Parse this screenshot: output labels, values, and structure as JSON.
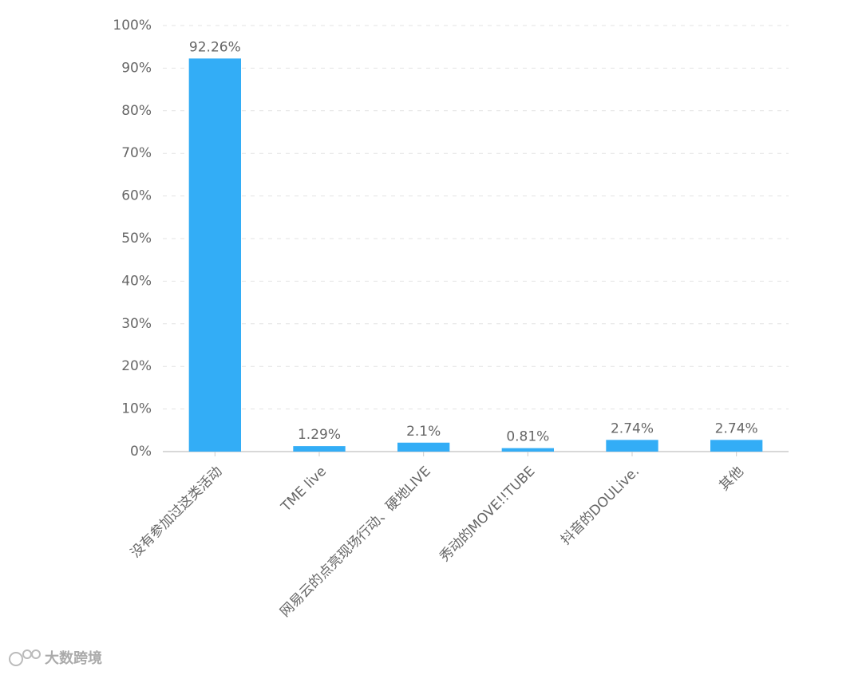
{
  "chart_data": {
    "type": "bar",
    "categories": [
      "没有参加过这类活动",
      "TME live",
      "网易云的点亮现场行动、硬地LIVE",
      "秀动的MOVE!!TUBE",
      "抖音的DOULive.",
      "其他"
    ],
    "values": [
      92.26,
      1.29,
      2.1,
      0.81,
      2.74,
      2.74
    ],
    "value_labels": [
      "92.26%",
      "1.29%",
      "2.1%",
      "0.81%",
      "2.74%",
      "2.74%"
    ],
    "color": "#33adf6",
    "ylim": [
      0,
      100
    ],
    "yticks": [
      {
        "value": 0,
        "label": "0%"
      },
      {
        "value": 10,
        "label": "10%"
      },
      {
        "value": 20,
        "label": "20%"
      },
      {
        "value": 30,
        "label": "30%"
      },
      {
        "value": 40,
        "label": "40%"
      },
      {
        "value": 50,
        "label": "50%"
      },
      {
        "value": 60,
        "label": "60%"
      },
      {
        "value": 70,
        "label": "70%"
      },
      {
        "value": 80,
        "label": "80%"
      },
      {
        "value": 90,
        "label": "90%"
      },
      {
        "value": 100,
        "label": "100%"
      }
    ],
    "grid": true
  },
  "watermark": "大数跨境"
}
